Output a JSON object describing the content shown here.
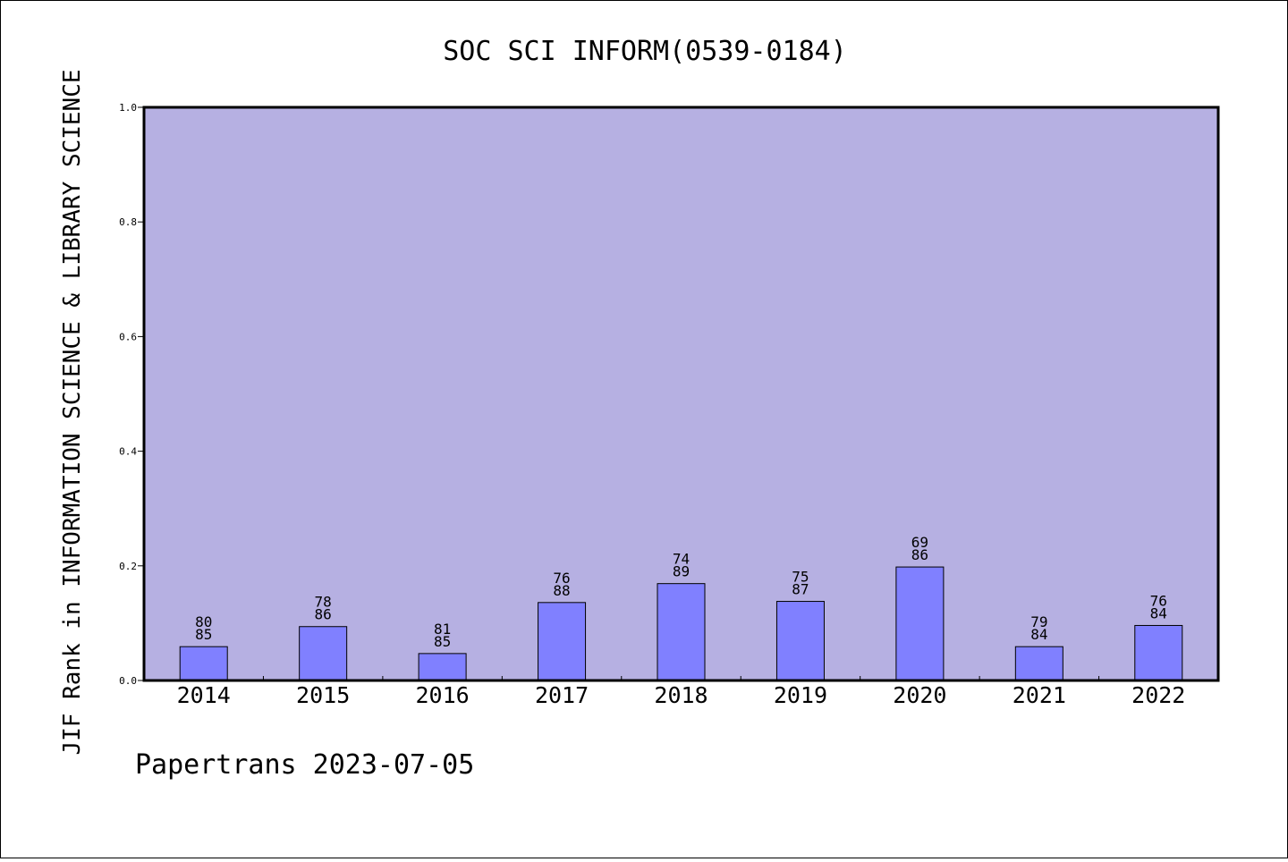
{
  "chart_data": {
    "type": "bar",
    "title": "SOC SCI INFORM(0539-0184)",
    "ylabel": "JIF Rank in INFORMATION SCIENCE & LIBRARY SCIENCE",
    "xlabel": "",
    "footer": "Papertrans 2023-07-05",
    "ylim": [
      0,
      1
    ],
    "y_ticks": [
      "0.0",
      "0.2",
      "0.4",
      "0.6",
      "0.8",
      "1.0"
    ],
    "grid": false,
    "colors": {
      "plot_bg": "#b6b0e2",
      "bar": "#8080ff",
      "bar_edge": "#000000"
    },
    "categories": [
      "2014",
      "2015",
      "2016",
      "2017",
      "2018",
      "2019",
      "2020",
      "2021",
      "2022"
    ],
    "values": [
      0.059,
      0.094,
      0.047,
      0.136,
      0.169,
      0.138,
      0.198,
      0.059,
      0.096
    ],
    "rank": [
      "80",
      "78",
      "81",
      "76",
      "74",
      "75",
      "69",
      "79",
      "76"
    ],
    "total": [
      "85",
      "86",
      "85",
      "88",
      "89",
      "87",
      "86",
      "84",
      "84"
    ]
  }
}
